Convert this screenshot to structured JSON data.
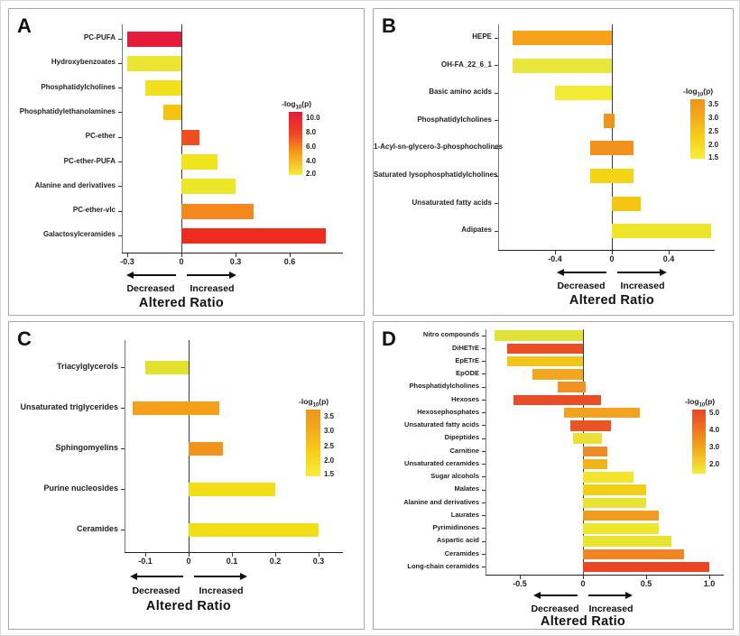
{
  "figure_title": "",
  "chart_data": [
    {
      "panel": "A",
      "type": "bar",
      "orientation": "horizontal",
      "xlabel": "Altered Ratio",
      "arrow_labels": {
        "decreased": "Decreased",
        "increased": "Increased"
      },
      "x_tick_labels": [
        "-0.3",
        "0",
        "0.3",
        "0.6"
      ],
      "x_tick_values": [
        -0.3,
        0,
        0.3,
        0.6
      ],
      "xlim": [
        -0.33,
        0.9
      ],
      "colorbar": {
        "title_main": "-log",
        "title_sub": "10",
        "title_tail": "(p)",
        "tick_labels": [
          "10.0",
          "8.0",
          "6.0",
          "4.0",
          "2.0"
        ],
        "gradient": [
          "#e31b3c",
          "#ee4723 35%",
          "#f59d1b 65%",
          "#f3ec3c"
        ]
      },
      "bars": [
        {
          "label": "PC-PUFA",
          "start": -0.3,
          "end": 0,
          "color": "#e61b3c"
        },
        {
          "label": "Hydroxybenzoates",
          "start": -0.3,
          "end": 0,
          "color": "#ece433"
        },
        {
          "label": "Phosphatidylcholines",
          "start": -0.2,
          "end": 0,
          "color": "#f2df1d"
        },
        {
          "label": "Phosphatidylethanolamines",
          "start": -0.1,
          "end": 0,
          "color": "#f4c411"
        },
        {
          "label": "PC-ether",
          "start": 0,
          "end": 0.1,
          "color": "#ee4e22"
        },
        {
          "label": "PC-ether-PUFA",
          "start": 0,
          "end": 0.2,
          "color": "#f0e41f"
        },
        {
          "label": "Alanine and derivatives",
          "start": 0,
          "end": 0.3,
          "color": "#ece62a"
        },
        {
          "label": "PC-ether-vlc",
          "start": 0,
          "end": 0.4,
          "color": "#f5881c"
        },
        {
          "label": "Galactosylceramides",
          "start": 0,
          "end": 0.8,
          "color": "#ee2d1e"
        }
      ]
    },
    {
      "panel": "B",
      "type": "bar",
      "orientation": "horizontal",
      "xlabel": "Altered Ratio",
      "arrow_labels": {
        "decreased": "Decreased",
        "increased": "Increased"
      },
      "x_tick_labels": [
        "-0.4",
        "0",
        "0.4"
      ],
      "x_tick_values": [
        -0.4,
        0,
        0.4
      ],
      "xlim": [
        -0.8,
        0.72
      ],
      "colorbar": {
        "title_main": "-log",
        "title_sub": "10",
        "title_tail": "(p)",
        "tick_labels": [
          "3.5",
          "3.0",
          "2.5",
          "2.0",
          "1.5"
        ],
        "gradient": [
          "#f0921c",
          "#f3ab1b 30%",
          "#f7cf18 65%",
          "#f5ef3c"
        ]
      },
      "bars": [
        {
          "label": "HEPE",
          "start": -0.7,
          "end": 0,
          "color": "#f5a11c"
        },
        {
          "label": "OH-FA_22_6_1",
          "start": -0.7,
          "end": 0,
          "color": "#eae73c"
        },
        {
          "label": "Basic amino acids",
          "start": -0.4,
          "end": 0,
          "color": "#f1ec33"
        },
        {
          "label": "Phosphatidylcholines",
          "start": -0.06,
          "end": 0.02,
          "color": "#f0931d"
        },
        {
          "label": "1-Acyl-sn-glycero-3-phosphocholines",
          "start": -0.15,
          "end": 0.15,
          "color": "#f0921d"
        },
        {
          "label": "Saturated lysophosphatidylcholines",
          "start": -0.15,
          "end": 0.15,
          "color": "#f5d317"
        },
        {
          "label": "Unsaturated fatty acids",
          "start": 0,
          "end": 0.2,
          "color": "#f5c513"
        },
        {
          "label": "Adipates",
          "start": 0,
          "end": 0.7,
          "color": "#eee42a"
        }
      ]
    },
    {
      "panel": "C",
      "type": "bar",
      "orientation": "horizontal",
      "xlabel": "Altered Ratio",
      "arrow_labels": {
        "decreased": "Decreased",
        "increased": "Increased"
      },
      "x_tick_labels": [
        "-0.1",
        "0",
        "0.1",
        "0.2",
        "0.3"
      ],
      "x_tick_values": [
        -0.1,
        0,
        0.1,
        0.2,
        0.3
      ],
      "xlim": [
        -0.148,
        0.356
      ],
      "colorbar": {
        "title_main": "-log",
        "title_sub": "10",
        "title_tail": "(p)",
        "tick_labels": [
          "3.5",
          "3.0",
          "2.5",
          "2.0",
          "1.5"
        ],
        "gradient": [
          "#f0921c",
          "#f3ab1b 30%",
          "#f7cf18 65%",
          "#f5ef3c"
        ]
      },
      "bars": [
        {
          "label": "Triacylglycerols",
          "start": -0.1,
          "end": 0,
          "color": "#e4e12c"
        },
        {
          "label": "Unsaturated triglycerides",
          "start": -0.13,
          "end": 0.07,
          "color": "#f5a01b"
        },
        {
          "label": "Sphingomyelins",
          "start": 0,
          "end": 0.08,
          "color": "#f1931c"
        },
        {
          "label": "Purine nucleosides",
          "start": 0,
          "end": 0.2,
          "color": "#f2de17"
        },
        {
          "label": "Ceramides",
          "start": 0,
          "end": 0.3,
          "color": "#f2de17"
        }
      ]
    },
    {
      "panel": "D",
      "type": "bar",
      "orientation": "horizontal",
      "xlabel": "Altered Ratio",
      "arrow_labels": {
        "decreased": "Decreased",
        "increased": "Increased"
      },
      "x_tick_labels": [
        "-0.5",
        "0",
        "0.5",
        "1.0"
      ],
      "x_tick_values": [
        -0.5,
        0,
        0.5,
        1.0
      ],
      "xlim": [
        -0.77,
        1.11
      ],
      "colorbar": {
        "title_main": "-log",
        "title_sub": "10",
        "title_tail": "(p)",
        "tick_labels": [
          "5.0",
          "4.0",
          "3.0",
          "2.0"
        ],
        "gradient": [
          "#e84527",
          "#ee7d22 35%",
          "#f2a81c 60%",
          "#f5ee38"
        ]
      },
      "bars": [
        {
          "label": "Nitro compounds",
          "start": -0.7,
          "end": 0,
          "color": "#e2e13a"
        },
        {
          "label": "DiHETrE",
          "start": -0.6,
          "end": 0,
          "color": "#ed4d22"
        },
        {
          "label": "EpETrE",
          "start": -0.6,
          "end": 0,
          "color": "#f2c51c"
        },
        {
          "label": "EpODE",
          "start": -0.4,
          "end": 0,
          "color": "#f2a81e"
        },
        {
          "label": "Phosphatidylcholines",
          "start": -0.2,
          "end": 0.02,
          "color": "#f19320"
        },
        {
          "label": "Hexoses",
          "start": -0.55,
          "end": 0.14,
          "color": "#e94d26"
        },
        {
          "label": "Hexosephosphates",
          "start": -0.15,
          "end": 0.45,
          "color": "#f2a31d"
        },
        {
          "label": "Unsaturated fatty acids",
          "start": -0.1,
          "end": 0.22,
          "color": "#e95427"
        },
        {
          "label": "Dipeptides",
          "start": -0.08,
          "end": 0.15,
          "color": "#ecdf35"
        },
        {
          "label": "Carnitine",
          "start": 0,
          "end": 0.19,
          "color": "#ee8b26"
        },
        {
          "label": "Unsaturated ceramides",
          "start": 0,
          "end": 0.19,
          "color": "#f2b517"
        },
        {
          "label": "Sugar alcohols",
          "start": 0,
          "end": 0.4,
          "color": "#f4e52c"
        },
        {
          "label": "Malates",
          "start": 0,
          "end": 0.5,
          "color": "#f2cf13"
        },
        {
          "label": "Alanine and derivatives",
          "start": 0,
          "end": 0.5,
          "color": "#eae334"
        },
        {
          "label": "Laurates",
          "start": 0,
          "end": 0.6,
          "color": "#f19c1d"
        },
        {
          "label": "Pyrimidinones",
          "start": 0,
          "end": 0.6,
          "color": "#eee52e"
        },
        {
          "label": "Aspartic acid",
          "start": 0,
          "end": 0.7,
          "color": "#e7e532"
        },
        {
          "label": "Ceramides",
          "start": 0,
          "end": 0.8,
          "color": "#f08526"
        },
        {
          "label": "Long-chain ceramides",
          "start": 0,
          "end": 1.0,
          "color": "#ea4623"
        }
      ]
    }
  ]
}
